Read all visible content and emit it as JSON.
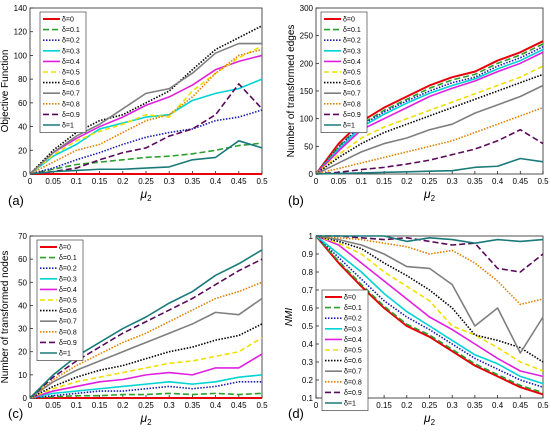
{
  "legend_labels": [
    "δ=0",
    "δ=0.1",
    "δ=0.2",
    "δ=0.3",
    "δ=0.4",
    "δ=0.5",
    "δ=0.6",
    "δ=0.7",
    "δ=0.8",
    "δ=0.9",
    "δ=1"
  ],
  "series_styles": [
    {
      "color": "#e8000b",
      "dash": "none",
      "width": 2.0
    },
    {
      "color": "#2ca02c",
      "dash": "6,3",
      "width": 1.6
    },
    {
      "color": "#1b1bb3",
      "dash": "1.5,1.5",
      "width": 1.6
    },
    {
      "color": "#00d4d4",
      "dash": "none",
      "width": 1.6
    },
    {
      "color": "#e020e0",
      "dash": "none",
      "width": 1.6
    },
    {
      "color": "#f0e000",
      "dash": "5,3",
      "width": 1.6
    },
    {
      "color": "#000000",
      "dash": "1.5,1.5",
      "width": 1.6
    },
    {
      "color": "#7f7f7f",
      "dash": "none",
      "width": 1.6
    },
    {
      "color": "#e08000",
      "dash": "1.5,1.5",
      "width": 1.6
    },
    {
      "color": "#5a0a5a",
      "dash": "6,3",
      "width": 1.6
    },
    {
      "color": "#1a7a7a",
      "dash": "none",
      "width": 1.6
    }
  ],
  "chart_data": [
    {
      "panel_label": "(a)",
      "type": "line",
      "ylabel": "Objective Function",
      "xlabel": "μ2",
      "xlim": [
        0,
        0.5
      ],
      "ylim": [
        0,
        140
      ],
      "xticks": [
        "0",
        "0.05",
        "0.1",
        "0.15",
        "0.2",
        "0.25",
        "0.3",
        "0.35",
        "0.4",
        "0.45",
        "0.5"
      ],
      "yticks": [
        "0",
        "20",
        "40",
        "60",
        "80",
        "100",
        "120",
        "140"
      ],
      "legend_position": "top-left",
      "x": [
        0,
        0.05,
        0.1,
        0.15,
        0.2,
        0.25,
        0.3,
        0.35,
        0.4,
        0.45,
        0.5
      ],
      "series": [
        {
          "name": "δ=0",
          "values": [
            0,
            0,
            0,
            0,
            0,
            0,
            0,
            0,
            0,
            0,
            0
          ]
        },
        {
          "name": "δ=0.1",
          "values": [
            0,
            4,
            8,
            10,
            12,
            14,
            15,
            17,
            20,
            24,
            26
          ]
        },
        {
          "name": "δ=0.2",
          "values": [
            0,
            5,
            12,
            18,
            25,
            31,
            35,
            38,
            45,
            48,
            54
          ]
        },
        {
          "name": "δ=0.3",
          "values": [
            0,
            15,
            25,
            38,
            43,
            48,
            50,
            62,
            68,
            72,
            80
          ]
        },
        {
          "name": "δ=0.4",
          "values": [
            0,
            18,
            30,
            40,
            48,
            58,
            65,
            75,
            88,
            95,
            100
          ]
        },
        {
          "name": "δ=0.5",
          "values": [
            0,
            16,
            28,
            36,
            42,
            50,
            48,
            70,
            85,
            98,
            108
          ]
        },
        {
          "name": "δ=0.6",
          "values": [
            0,
            20,
            35,
            45,
            50,
            60,
            70,
            88,
            105,
            115,
            125
          ]
        },
        {
          "name": "δ=0.7",
          "values": [
            0,
            18,
            32,
            42,
            55,
            68,
            72,
            85,
            102,
            110,
            110
          ]
        },
        {
          "name": "δ=0.8",
          "values": [
            0,
            10,
            20,
            25,
            35,
            45,
            50,
            65,
            85,
            100,
            105
          ]
        },
        {
          "name": "δ=0.9",
          "values": [
            0,
            2,
            5,
            12,
            18,
            22,
            32,
            38,
            50,
            76,
            55
          ]
        },
        {
          "name": "δ=1",
          "values": [
            0,
            2,
            3,
            4,
            4,
            5,
            6,
            12,
            14,
            28,
            22
          ]
        }
      ]
    },
    {
      "panel_label": "(b)",
      "type": "line",
      "ylabel": "Number of transformed edges",
      "xlabel": "μ2",
      "xlim": [
        0,
        0.5
      ],
      "ylim": [
        0,
        300
      ],
      "xticks": [
        "0",
        "0.05",
        "0.1",
        "0.15",
        "0.2",
        "0.25",
        "0.3",
        "0.35",
        "0.4",
        "0.45",
        "0.5"
      ],
      "yticks": [
        "0",
        "50",
        "100",
        "150",
        "200",
        "250",
        "300"
      ],
      "legend_position": "top-left",
      "x": [
        0,
        0.05,
        0.1,
        0.15,
        0.2,
        0.25,
        0.3,
        0.35,
        0.4,
        0.45,
        0.5
      ],
      "series": [
        {
          "name": "δ=0",
          "values": [
            0,
            55,
            95,
            120,
            140,
            160,
            175,
            185,
            205,
            220,
            240
          ]
        },
        {
          "name": "δ=0.1",
          "values": [
            0,
            50,
            90,
            115,
            135,
            155,
            170,
            180,
            200,
            215,
            235
          ]
        },
        {
          "name": "δ=0.2",
          "values": [
            0,
            48,
            88,
            112,
            132,
            150,
            165,
            175,
            195,
            210,
            230
          ]
        },
        {
          "name": "δ=0.3",
          "values": [
            0,
            45,
            85,
            108,
            128,
            146,
            160,
            172,
            190,
            205,
            225
          ]
        },
        {
          "name": "δ=0.4",
          "values": [
            0,
            42,
            80,
            100,
            120,
            140,
            155,
            168,
            185,
            200,
            220
          ]
        },
        {
          "name": "δ=0.5",
          "values": [
            0,
            35,
            65,
            85,
            100,
            115,
            130,
            145,
            160,
            175,
            195
          ]
        },
        {
          "name": "δ=0.6",
          "values": [
            0,
            30,
            55,
            75,
            90,
            105,
            120,
            135,
            150,
            165,
            180
          ]
        },
        {
          "name": "δ=0.7",
          "values": [
            0,
            20,
            40,
            55,
            65,
            80,
            90,
            110,
            125,
            140,
            160
          ]
        },
        {
          "name": "δ=0.8",
          "values": [
            0,
            10,
            20,
            30,
            40,
            50,
            60,
            75,
            90,
            105,
            120
          ]
        },
        {
          "name": "δ=0.9",
          "values": [
            0,
            3,
            8,
            12,
            18,
            25,
            35,
            45,
            60,
            80,
            55
          ]
        },
        {
          "name": "δ=1",
          "values": [
            0,
            1,
            2,
            3,
            4,
            5,
            6,
            12,
            14,
            28,
            22
          ]
        }
      ]
    },
    {
      "panel_label": "(c)",
      "type": "line",
      "ylabel": "Number of transformed nodes",
      "xlabel": "μ2",
      "xlim": [
        0,
        0.5
      ],
      "ylim": [
        0,
        70
      ],
      "xticks": [
        "0",
        "0.05",
        "0.1",
        "0.15",
        "0.2",
        "0.25",
        "0.3",
        "0.35",
        "0.4",
        "0.45",
        "0.5"
      ],
      "yticks": [
        "0",
        "10",
        "20",
        "30",
        "40",
        "50",
        "60",
        "70"
      ],
      "legend_position": "top-left",
      "x": [
        0,
        0.05,
        0.1,
        0.15,
        0.2,
        0.25,
        0.3,
        0.35,
        0.4,
        0.45,
        0.5
      ],
      "series": [
        {
          "name": "δ=0",
          "values": [
            0,
            0,
            0,
            0,
            0,
            0,
            0,
            0,
            0,
            0,
            0
          ]
        },
        {
          "name": "δ=0.1",
          "values": [
            0,
            0.5,
            1,
            1,
            1.5,
            1.5,
            2,
            1.5,
            2,
            1.5,
            2
          ]
        },
        {
          "name": "δ=0.2",
          "values": [
            0,
            1,
            2,
            3,
            3,
            4,
            5,
            4,
            5,
            7,
            7
          ]
        },
        {
          "name": "δ=0.3",
          "values": [
            0,
            2,
            3,
            4,
            5,
            6,
            7,
            6,
            7,
            9,
            10
          ]
        },
        {
          "name": "δ=0.4",
          "values": [
            0,
            3,
            5,
            7,
            8,
            10,
            11,
            10,
            13,
            13,
            19
          ]
        },
        {
          "name": "δ=0.5",
          "values": [
            0,
            4,
            7,
            9,
            11,
            13,
            15,
            16,
            18,
            20,
            26
          ]
        },
        {
          "name": "δ=0.6",
          "values": [
            0,
            5,
            9,
            12,
            14,
            17,
            20,
            22,
            25,
            27,
            32
          ]
        },
        {
          "name": "δ=0.7",
          "values": [
            0,
            7,
            12,
            16,
            20,
            24,
            28,
            32,
            37,
            36,
            43
          ]
        },
        {
          "name": "δ=0.8",
          "values": [
            0,
            8,
            14,
            19,
            24,
            28,
            33,
            38,
            43,
            46,
            50
          ]
        },
        {
          "name": "δ=0.9",
          "values": [
            0,
            9,
            16,
            22,
            28,
            33,
            38,
            43,
            49,
            55,
            60
          ]
        },
        {
          "name": "δ=1",
          "values": [
            0,
            10,
            18,
            24,
            30,
            35,
            41,
            46,
            53,
            58,
            64
          ]
        }
      ]
    },
    {
      "panel_label": "(d)",
      "type": "line",
      "ylabel": "NMI",
      "xlabel": "μ2",
      "xlim": [
        0,
        0.5
      ],
      "ylim": [
        0.1,
        1
      ],
      "xticks": [
        "0",
        "0.05",
        "0.1",
        "0.15",
        "0.2",
        "0.25",
        "0.3",
        "0.35",
        "0.4",
        "0.45",
        "0.5"
      ],
      "yticks": [
        "0.1",
        "0.2",
        "0.3",
        "0.4",
        "0.5",
        "0.6",
        "0.7",
        "0.8",
        "0.9",
        "1"
      ],
      "legend_position": "bottom-left",
      "x": [
        0,
        0.05,
        0.1,
        0.15,
        0.2,
        0.25,
        0.3,
        0.35,
        0.4,
        0.45,
        0.5
      ],
      "series": [
        {
          "name": "δ=0",
          "values": [
            1,
            0.85,
            0.72,
            0.6,
            0.5,
            0.44,
            0.36,
            0.28,
            0.22,
            0.16,
            0.12
          ]
        },
        {
          "name": "δ=0.1",
          "values": [
            1,
            0.86,
            0.73,
            0.61,
            0.51,
            0.45,
            0.37,
            0.29,
            0.23,
            0.17,
            0.13
          ]
        },
        {
          "name": "δ=0.2",
          "values": [
            1,
            0.88,
            0.76,
            0.64,
            0.55,
            0.48,
            0.4,
            0.32,
            0.26,
            0.2,
            0.16
          ]
        },
        {
          "name": "δ=0.3",
          "values": [
            1,
            0.9,
            0.8,
            0.68,
            0.58,
            0.5,
            0.42,
            0.34,
            0.29,
            0.22,
            0.18
          ]
        },
        {
          "name": "δ=0.4",
          "values": [
            1,
            0.95,
            0.85,
            0.75,
            0.65,
            0.55,
            0.48,
            0.4,
            0.32,
            0.25,
            0.22
          ]
        },
        {
          "name": "δ=0.5",
          "values": [
            1,
            0.96,
            0.9,
            0.8,
            0.72,
            0.64,
            0.5,
            0.45,
            0.38,
            0.3,
            0.25
          ]
        },
        {
          "name": "δ=0.6",
          "values": [
            1,
            0.97,
            0.93,
            0.85,
            0.78,
            0.7,
            0.6,
            0.45,
            0.42,
            0.38,
            0.3
          ]
        },
        {
          "name": "δ=0.7",
          "values": [
            1,
            0.98,
            0.95,
            0.9,
            0.83,
            0.82,
            0.73,
            0.5,
            0.6,
            0.35,
            0.55
          ]
        },
        {
          "name": "δ=0.8",
          "values": [
            1,
            0.99,
            0.98,
            0.96,
            0.94,
            0.9,
            0.92,
            0.85,
            0.75,
            0.62,
            0.65
          ]
        },
        {
          "name": "δ=0.9",
          "values": [
            1,
            1,
            0.99,
            0.98,
            0.99,
            0.97,
            0.95,
            0.96,
            0.82,
            0.8,
            0.9
          ]
        },
        {
          "name": "δ=1",
          "values": [
            1,
            1,
            1,
            1,
            0.97,
            0.99,
            0.98,
            0.96,
            0.98,
            0.97,
            0.98
          ]
        }
      ]
    }
  ]
}
